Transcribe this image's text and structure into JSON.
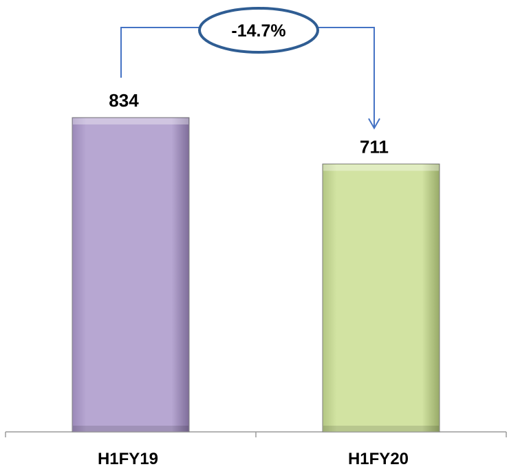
{
  "chart_data": {
    "type": "bar",
    "categories": [
      "H1FY19",
      "H1FY20"
    ],
    "values": [
      834,
      711
    ],
    "data_labels": [
      "834",
      "711"
    ],
    "colors": [
      "#b4a4cf",
      "#cfe09e"
    ],
    "ylim": [
      0,
      1000
    ],
    "annotation": {
      "text": "-14.7%",
      "color": "#2f5d93",
      "connector_color": "#4472c4"
    },
    "title": "",
    "xlabel": "",
    "ylabel": "",
    "grid": false,
    "legend": "none"
  }
}
